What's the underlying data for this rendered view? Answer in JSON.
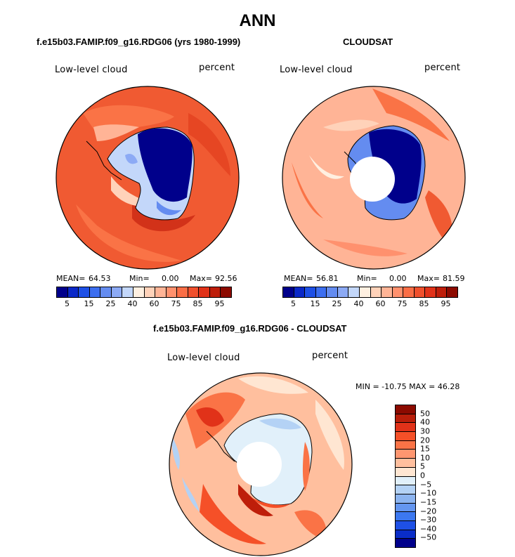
{
  "title": "ANN",
  "panels": {
    "model": {
      "subtitle": "f.e15b03.FAMIP.f09_g16.RDG06 (yrs 1980-1999)",
      "variable": "Low-level cloud",
      "units": "percent",
      "stats": {
        "mean_label": "MEAN=",
        "mean": "64.53",
        "min_label": "Min=",
        "min": "0.00",
        "max_label": "Max=",
        "max": "92.56"
      }
    },
    "obs": {
      "subtitle": "CLOUDSAT",
      "variable": "Low-level cloud",
      "units": "percent",
      "stats": {
        "mean_label": "MEAN=",
        "mean": "56.81",
        "min_label": "Min=",
        "min": "0.00",
        "max_label": "Max=",
        "max": "81.59"
      }
    },
    "diff": {
      "subtitle": "f.e15b03.FAMIP.f09_g16.RDG06 - CLOUDSAT",
      "variable": "Low-level cloud",
      "units": "percent",
      "minmax": "MIN = -10.75 MAX =  46.28"
    }
  },
  "colorbar_main": {
    "colors": [
      "#00008b",
      "#0a28c8",
      "#1e50e6",
      "#3c6ef0",
      "#648cf0",
      "#8caaf5",
      "#c3d7fa",
      "#fff0e1",
      "#ffd2b9",
      "#ffb496",
      "#ff916e",
      "#fa6e46",
      "#f0502d",
      "#e13219",
      "#be1e0a",
      "#8c0a00"
    ],
    "ticks": [
      "5",
      "15",
      "25",
      "40",
      "60",
      "75",
      "85",
      "95"
    ]
  },
  "colorbar_diff": {
    "colors": [
      "#8c0a00",
      "#b91e0a",
      "#e13219",
      "#f55028",
      "#fa7346",
      "#ff9670",
      "#ffbf9e",
      "#ffe6d2",
      "#e1f0fa",
      "#b4d2f5",
      "#8cb4f0",
      "#6496f0",
      "#3c78f0",
      "#1e50e6",
      "#0a2dc8",
      "#00008b"
    ],
    "ticks": [
      "50",
      "40",
      "30",
      "20",
      "15",
      "10",
      "5",
      "0",
      "−5",
      "−10",
      "−15",
      "−20",
      "−30",
      "−40",
      "−50"
    ]
  }
}
